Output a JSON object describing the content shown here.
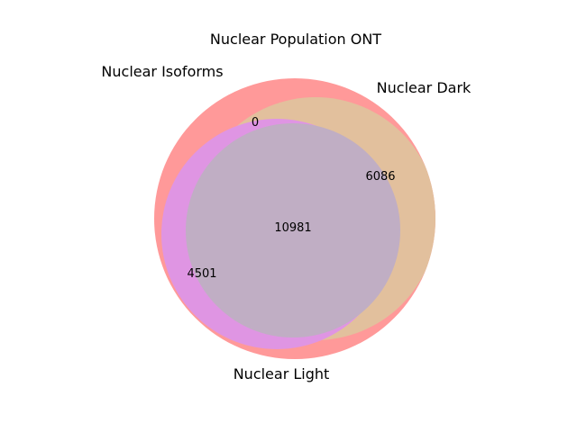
{
  "title": "Nuclear Population ONT",
  "sets": [
    {
      "id": "isoforms",
      "label": "Nuclear Isoforms",
      "color": "#ff9999"
    },
    {
      "id": "dark",
      "label": "Nuclear Dark",
      "color": "#e6c39a"
    },
    {
      "id": "light",
      "label": "Nuclear Light",
      "color": "#dd90e6"
    }
  ],
  "overlap_color": "#c0aec4",
  "counts": {
    "isoforms_only": "0",
    "isoforms_dark": "6086",
    "isoforms_light": "4501",
    "all_three": "10981"
  }
}
